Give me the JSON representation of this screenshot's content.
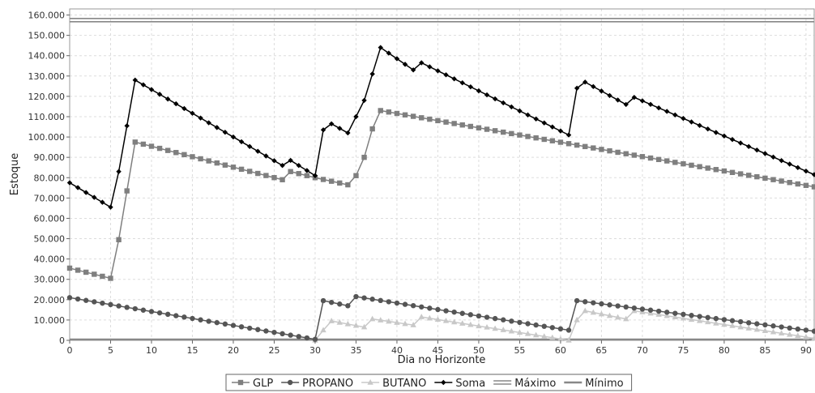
{
  "chart_data": {
    "type": "line",
    "title": "",
    "xlabel": "Dia no Horizonte",
    "ylabel": "Estoque",
    "xlim": [
      0,
      91
    ],
    "ylim": [
      0,
      163000
    ],
    "x_ticks": [
      "0",
      "5",
      "10",
      "15",
      "20",
      "25",
      "30",
      "35",
      "40",
      "45",
      "50",
      "55",
      "60",
      "65",
      "70",
      "75",
      "80",
      "85",
      "90"
    ],
    "y_ticks": [
      "0",
      "10.000",
      "20.000",
      "30.000",
      "40.000",
      "50.000",
      "60.000",
      "70.000",
      "80.000",
      "90.000",
      "100.000",
      "110.000",
      "120.000",
      "130.000",
      "140.000",
      "150.000",
      "160.000"
    ],
    "grid": true,
    "legend": "bottom",
    "series": [
      {
        "name": "GLP",
        "color": "#7f7f7f",
        "marker": "square",
        "points": [
          [
            0,
            35500
          ],
          [
            5,
            30500
          ],
          [
            6,
            49500
          ],
          [
            7,
            73500
          ],
          [
            8,
            97500
          ],
          [
            26,
            79000
          ],
          [
            27,
            83000
          ],
          [
            30,
            80000
          ],
          [
            34,
            76500
          ],
          [
            35,
            81000
          ],
          [
            36,
            90000
          ],
          [
            37,
            104000
          ],
          [
            38,
            113000
          ],
          [
            91,
            75500
          ]
        ]
      },
      {
        "name": "PROPANO",
        "color": "#555555",
        "marker": "circle",
        "points": [
          [
            0,
            21000
          ],
          [
            30,
            500
          ],
          [
            31,
            19500
          ],
          [
            34,
            17000
          ],
          [
            35,
            21500
          ],
          [
            61,
            5000
          ],
          [
            62,
            19500
          ],
          [
            91,
            4500
          ]
        ]
      },
      {
        "name": "BUTANO",
        "color": "#c8c8c8",
        "marker": "triangle",
        "points": [
          [
            30,
            0
          ],
          [
            31,
            5000
          ],
          [
            32,
            9500
          ],
          [
            36,
            6500
          ],
          [
            37,
            10500
          ],
          [
            42,
            7500
          ],
          [
            43,
            11500
          ],
          [
            61,
            0
          ],
          [
            62,
            10000
          ],
          [
            63,
            14500
          ],
          [
            68,
            10500
          ],
          [
            69,
            14500
          ],
          [
            91,
            1000
          ]
        ]
      },
      {
        "name": "Soma",
        "color": "#000000",
        "marker": "diamond",
        "points": [
          [
            0,
            77500
          ],
          [
            5,
            65500
          ],
          [
            6,
            83000
          ],
          [
            7,
            105500
          ],
          [
            8,
            128000
          ],
          [
            26,
            86000
          ],
          [
            27,
            88500
          ],
          [
            30,
            81000
          ],
          [
            31,
            103500
          ],
          [
            32,
            106500
          ],
          [
            34,
            102000
          ],
          [
            35,
            110000
          ],
          [
            36,
            118000
          ],
          [
            37,
            131000
          ],
          [
            38,
            144000
          ],
          [
            42,
            133000
          ],
          [
            43,
            136500
          ],
          [
            61,
            101000
          ],
          [
            62,
            124000
          ],
          [
            63,
            127000
          ],
          [
            68,
            116000
          ],
          [
            69,
            119500
          ],
          [
            91,
            81500
          ]
        ]
      },
      {
        "name": "Máximo",
        "color": "#888888",
        "style": "double",
        "value": 157500
      },
      {
        "name": "Mínimo",
        "color": "#888888",
        "style": "single",
        "value": 0
      }
    ]
  }
}
